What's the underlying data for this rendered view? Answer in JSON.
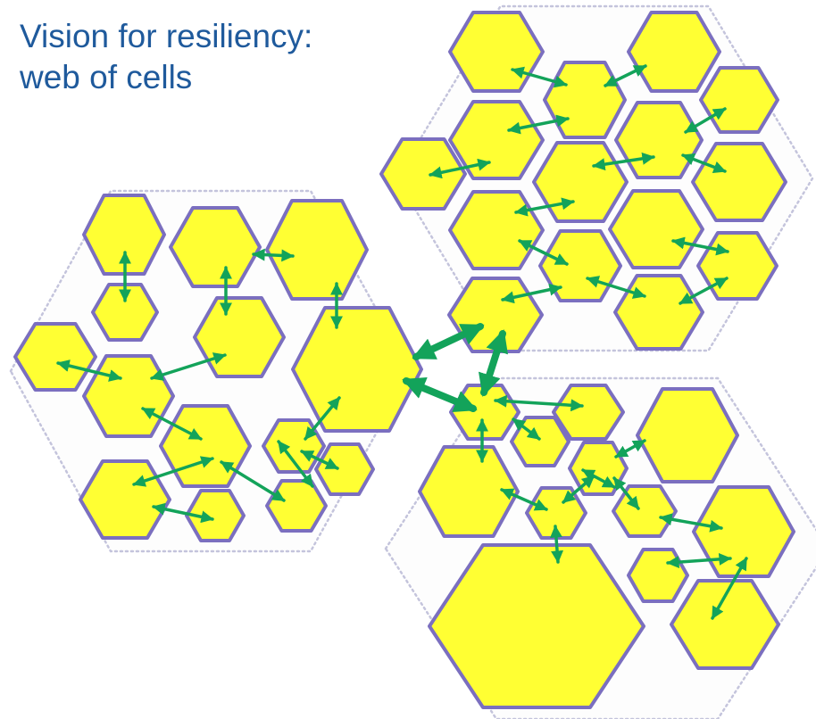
{
  "title": {
    "line1": "Vision for resiliency:",
    "line2": "web of cells"
  },
  "colors": {
    "title_text": "#1f5a9c",
    "cell_fill": "#ffff33",
    "cell_border": "#7b6fbf",
    "link": "#13a35a",
    "cluster_border": "#c4c4dc"
  },
  "icons": {
    "cell": "hexagon-icon",
    "link": "double-arrow-icon"
  }
}
